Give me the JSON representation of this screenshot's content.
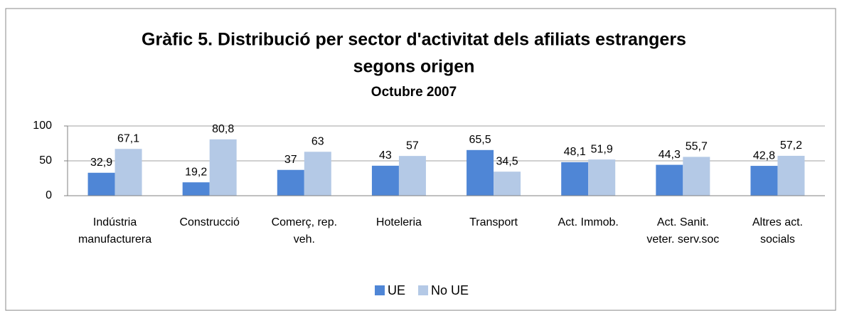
{
  "chart_data": {
    "type": "bar",
    "title": [
      "Gràfic 5. Distribució per sector d'activitat dels afiliats estrangers",
      "segons origen"
    ],
    "subtitle": "Octubre 2007",
    "categories": [
      [
        "Indústria",
        "manufacturera"
      ],
      [
        "Construcció"
      ],
      [
        "Comerç, rep.",
        "veh."
      ],
      [
        "Hoteleria"
      ],
      [
        "Transport"
      ],
      [
        "Act. Immob."
      ],
      [
        "Act. Sanit.",
        "veter.  serv.soc"
      ],
      [
        "Altres act.",
        "socials"
      ]
    ],
    "series": [
      {
        "name": "UE",
        "color": "#4f86d6",
        "values": [
          32.9,
          19.2,
          37,
          43,
          65.5,
          48.1,
          44.3,
          42.8
        ],
        "value_labels": [
          "32,9",
          "19,2",
          "37",
          "43",
          "65,5",
          "48,1",
          "44,3",
          "42,8"
        ]
      },
      {
        "name": "No UE",
        "color": "#b4c9e6",
        "values": [
          67.1,
          80.8,
          63,
          57,
          34.5,
          51.9,
          55.7,
          57.2
        ],
        "value_labels": [
          "67,1",
          "80,8",
          "63",
          "57",
          "34,5",
          "51,9",
          "55,7",
          "57,2"
        ]
      }
    ],
    "ylim": [
      0,
      100
    ],
    "yticks": [
      0,
      50,
      100
    ],
    "grid": true,
    "legend": "bottom"
  }
}
